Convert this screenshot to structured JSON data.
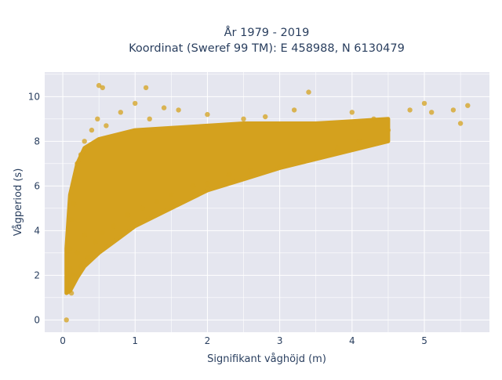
{
  "chart_data": {
    "type": "scatter",
    "title_lines": [
      "År 1979 - 2019",
      "Koordinat (Sweref 99 TM): E 458988, N 6130479"
    ],
    "xlabel": "Signifikant våghöjd (m)",
    "ylabel": "Vågperiod (s)",
    "xlim": [
      -0.25,
      5.9
    ],
    "ylim": [
      -0.55,
      11.1
    ],
    "xticks": [
      0,
      1,
      2,
      3,
      4,
      5
    ],
    "yticks": [
      0,
      2,
      4,
      6,
      8,
      10
    ],
    "marker_color": "#d4a11e",
    "plot_background": "#e5e6ef",
    "grid": true,
    "legend": false,
    "series": [
      {
        "points": [
          [
            0.05,
            0.0
          ],
          [
            0.07,
            1.4
          ],
          [
            0.08,
            1.9
          ],
          [
            0.1,
            2.3
          ],
          [
            0.1,
            3.2
          ],
          [
            0.12,
            1.2
          ],
          [
            0.12,
            4.5
          ],
          [
            0.15,
            5.2
          ],
          [
            0.15,
            2.0
          ],
          [
            0.18,
            6.3
          ],
          [
            0.2,
            3.0
          ],
          [
            0.2,
            7.0
          ],
          [
            0.25,
            2.4
          ],
          [
            0.25,
            7.4
          ],
          [
            0.3,
            3.8
          ],
          [
            0.3,
            8.0
          ],
          [
            0.35,
            2.8
          ],
          [
            0.4,
            8.5
          ],
          [
            0.45,
            3.5
          ],
          [
            0.48,
            9.0
          ],
          [
            0.5,
            10.5
          ],
          [
            0.55,
            10.4
          ],
          [
            0.55,
            3.9
          ],
          [
            0.6,
            8.7
          ],
          [
            0.7,
            4.2
          ],
          [
            0.8,
            9.3
          ],
          [
            0.9,
            4.7
          ],
          [
            1.0,
            9.7
          ],
          [
            1.1,
            5.0
          ],
          [
            1.15,
            10.4
          ],
          [
            1.2,
            9.0
          ],
          [
            1.3,
            5.3
          ],
          [
            1.4,
            9.5
          ],
          [
            1.5,
            5.6
          ],
          [
            1.6,
            9.4
          ],
          [
            1.8,
            6.0
          ],
          [
            2.0,
            9.2
          ],
          [
            2.0,
            6.1
          ],
          [
            2.3,
            6.5
          ],
          [
            2.5,
            9.0
          ],
          [
            2.6,
            6.7
          ],
          [
            2.8,
            9.1
          ],
          [
            3.0,
            6.9
          ],
          [
            3.2,
            9.4
          ],
          [
            3.3,
            7.2
          ],
          [
            3.4,
            10.2
          ],
          [
            3.5,
            7.3
          ],
          [
            3.8,
            7.7
          ],
          [
            4.0,
            9.3
          ],
          [
            4.1,
            8.0
          ],
          [
            4.3,
            9.0
          ],
          [
            4.5,
            8.5
          ],
          [
            4.8,
            9.4
          ],
          [
            5.0,
            9.7
          ],
          [
            5.1,
            9.3
          ],
          [
            5.4,
            9.4
          ],
          [
            5.5,
            8.8
          ],
          [
            5.6,
            9.6
          ]
        ],
        "band": {
          "x": [
            0.05,
            0.1,
            0.2,
            0.3,
            0.5,
            0.75,
            1.0,
            1.5,
            2.0,
            2.5,
            3.0,
            3.5,
            4.0,
            4.5
          ],
          "y_low": [
            1.2,
            1.3,
            1.9,
            2.4,
            3.0,
            3.6,
            4.2,
            5.0,
            5.8,
            6.3,
            6.8,
            7.2,
            7.6,
            8.0
          ],
          "y_high": [
            3.2,
            5.6,
            7.0,
            7.7,
            8.1,
            8.3,
            8.5,
            8.6,
            8.7,
            8.8,
            8.8,
            8.8,
            8.9,
            9.0
          ]
        }
      }
    ]
  }
}
